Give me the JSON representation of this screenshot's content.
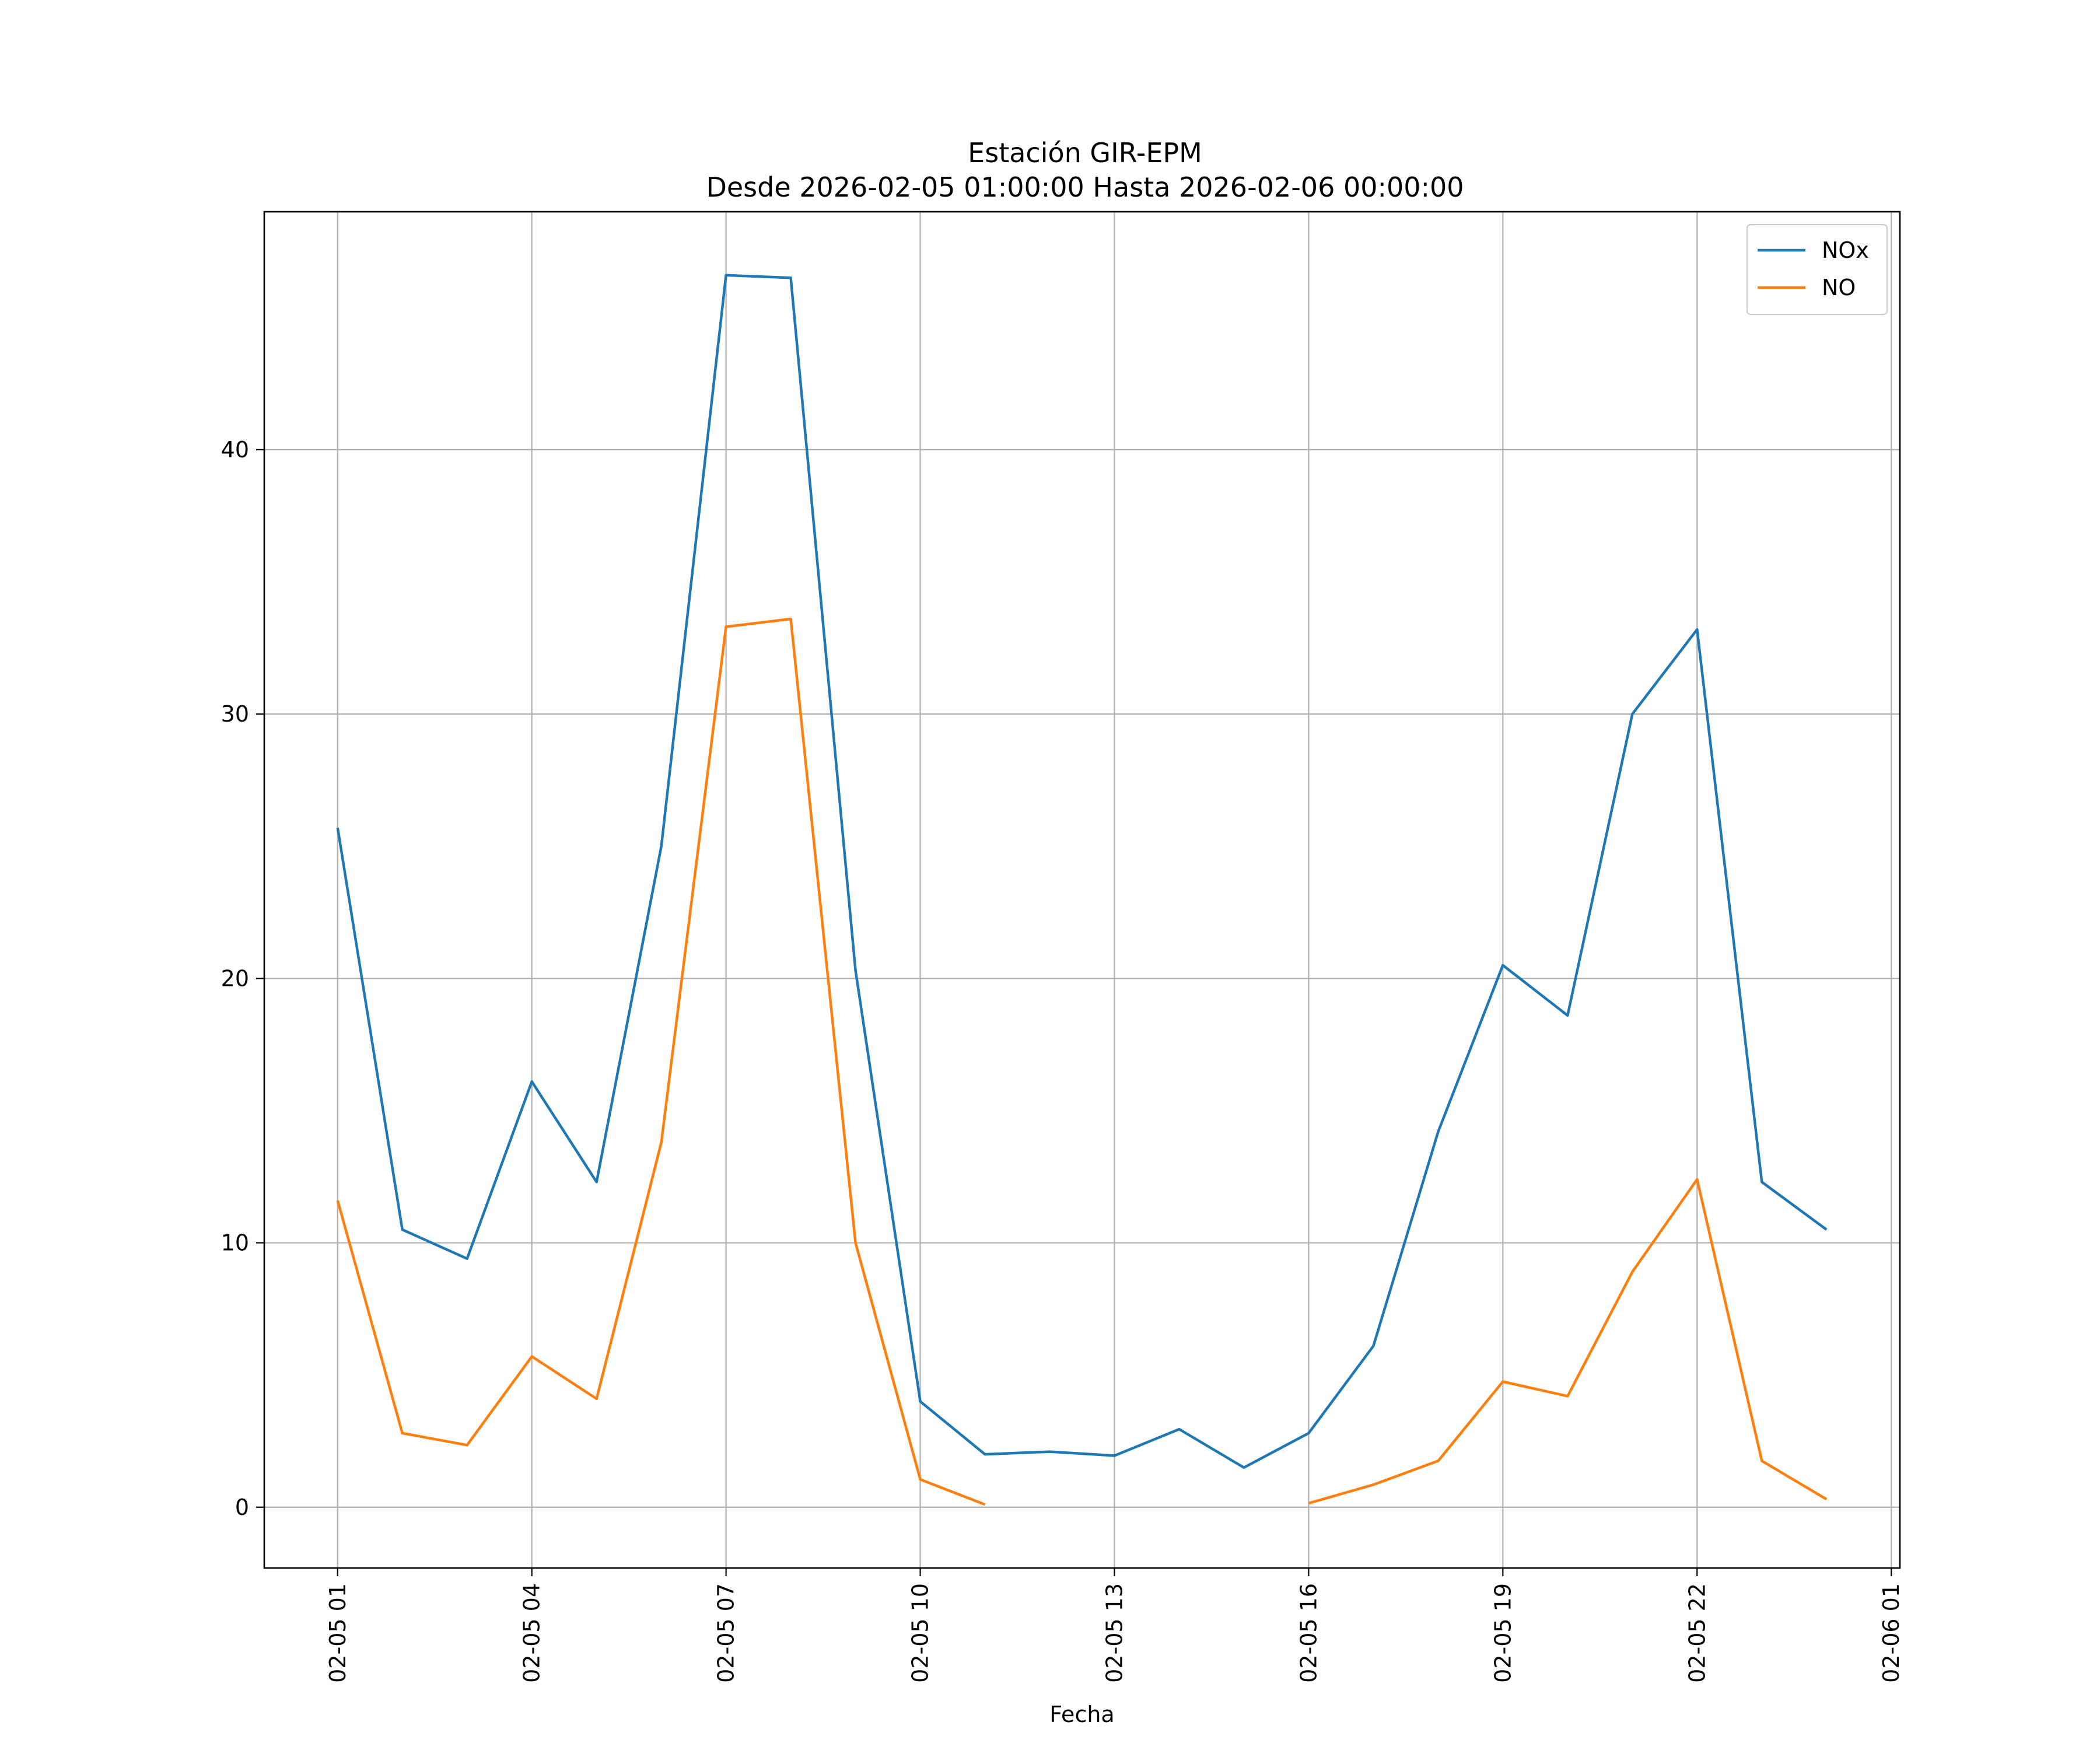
{
  "chart_data": {
    "type": "line",
    "title": "Estación GIR-EPM",
    "subtitle": "Desde 2026-02-05 01:00:00 Hasta 2026-02-06 00:00:00",
    "xlabel": "Fecha",
    "ylabel": "",
    "x": [
      "2026-02-05 01:00",
      "2026-02-05 02:00",
      "2026-02-05 03:00",
      "2026-02-05 04:00",
      "2026-02-05 05:00",
      "2026-02-05 06:00",
      "2026-02-05 07:00",
      "2026-02-05 08:00",
      "2026-02-05 09:00",
      "2026-02-05 10:00",
      "2026-02-05 11:00",
      "2026-02-05 12:00",
      "2026-02-05 13:00",
      "2026-02-05 14:00",
      "2026-02-05 15:00",
      "2026-02-05 16:00",
      "2026-02-05 17:00",
      "2026-02-05 18:00",
      "2026-02-05 19:00",
      "2026-02-05 20:00",
      "2026-02-05 21:00",
      "2026-02-05 22:00",
      "2026-02-05 23:00",
      "2026-02-06 00:00"
    ],
    "xlim": [
      "2026-02-04 23:52",
      "2026-02-06 01:08"
    ],
    "ylim": [
      -2.3,
      49
    ],
    "xticks": [
      "2026-02-05 01:00",
      "2026-02-05 04:00",
      "2026-02-05 07:00",
      "2026-02-05 10:00",
      "2026-02-05 13:00",
      "2026-02-05 16:00",
      "2026-02-05 19:00",
      "2026-02-05 22:00",
      "2026-02-06 01:00"
    ],
    "xtick_labels": [
      "02-05 01",
      "02-05 04",
      "02-05 07",
      "02-05 10",
      "02-05 13",
      "02-05 16",
      "02-05 19",
      "02-05 22",
      "02-06 01"
    ],
    "yticks": [
      0,
      10,
      20,
      30,
      40
    ],
    "ytick_labels": [
      "0",
      "10",
      "20",
      "30",
      "40"
    ],
    "grid": true,
    "legend_position": "top-right",
    "series": [
      {
        "name": "NOx",
        "color": "#1f77b4",
        "values": [
          25.7,
          10.5,
          9.4,
          16.1,
          12.3,
          25.0,
          46.6,
          46.5,
          20.3,
          4.0,
          2.0,
          2.1,
          1.95,
          2.95,
          1.5,
          2.8,
          6.1,
          14.2,
          20.5,
          18.6,
          30.0,
          33.2,
          12.3,
          10.5
        ]
      },
      {
        "name": "NO",
        "color": "#ff7f0e",
        "values": [
          11.6,
          2.8,
          2.35,
          5.7,
          4.1,
          13.8,
          33.3,
          33.6,
          10.0,
          1.05,
          0.1,
          null,
          null,
          null,
          null,
          0.15,
          0.85,
          1.75,
          4.75,
          4.2,
          8.9,
          12.4,
          1.75,
          0.3
        ]
      }
    ]
  }
}
